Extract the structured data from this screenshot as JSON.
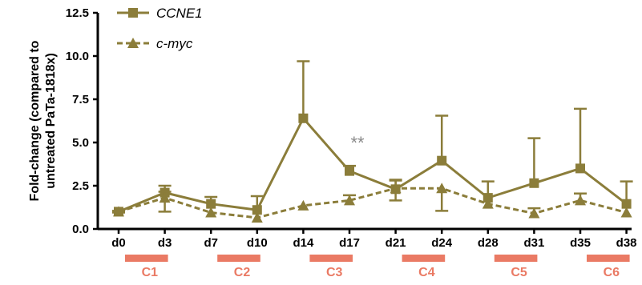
{
  "chart_data": {
    "type": "line",
    "ylabel_lines": [
      "untreated PaTa-1818x)",
      "Fold-change (compared to"
    ],
    "ylim": [
      0,
      12.5
    ],
    "yticks": [
      "0.0",
      "2.5",
      "5.0",
      "7.5",
      "10.0",
      "12.5"
    ],
    "categories": [
      "d0",
      "d3",
      "d7",
      "d10",
      "d14",
      "d17",
      "d21",
      "d24",
      "d28",
      "d31",
      "d35",
      "d38"
    ],
    "series": [
      {
        "name": "CCNE1",
        "color": "#8b7d3a",
        "line_style": "solid",
        "marker": "square",
        "values": [
          1.0,
          2.1,
          1.45,
          1.1,
          6.4,
          3.35,
          2.3,
          3.95,
          1.8,
          2.65,
          3.5,
          1.45
        ],
        "error_up": [
          0.05,
          0.4,
          0.4,
          0.8,
          3.3,
          0.3,
          0.55,
          2.6,
          0.95,
          2.6,
          3.45,
          1.3
        ],
        "error_down": [
          0.05,
          0,
          0,
          0,
          0,
          0,
          0,
          0,
          0,
          0,
          0,
          0
        ]
      },
      {
        "name": "c-myc",
        "color": "#8b7d3a",
        "line_style": "dashed",
        "marker": "triangle",
        "values": [
          1.0,
          1.8,
          0.95,
          0.65,
          1.35,
          1.65,
          2.35,
          2.35,
          1.45,
          0.9,
          1.65,
          0.95
        ],
        "error_up": [
          0,
          0.35,
          0,
          0,
          0,
          0.3,
          0.45,
          0,
          0,
          0.3,
          0.4,
          0
        ],
        "error_down": [
          0,
          0.8,
          0,
          0,
          0,
          0,
          0.7,
          1.3,
          0,
          0,
          0,
          0
        ]
      }
    ],
    "cycles": [
      {
        "label": "C1",
        "from": "d0",
        "to": "d3"
      },
      {
        "label": "C2",
        "from": "d7",
        "to": "d10"
      },
      {
        "label": "C3",
        "from": "d14",
        "to": "d17"
      },
      {
        "label": "C4",
        "from": "d21",
        "to": "d24"
      },
      {
        "label": "C5",
        "from": "d28",
        "to": "d31"
      },
      {
        "label": "C6",
        "from": "d35",
        "to": "d38"
      }
    ],
    "cycle_color": "#ea7a64",
    "annotations": [
      {
        "text": "**",
        "at": "d17",
        "y": 5.1
      }
    ],
    "legend_position": "top-left",
    "grid": false
  }
}
